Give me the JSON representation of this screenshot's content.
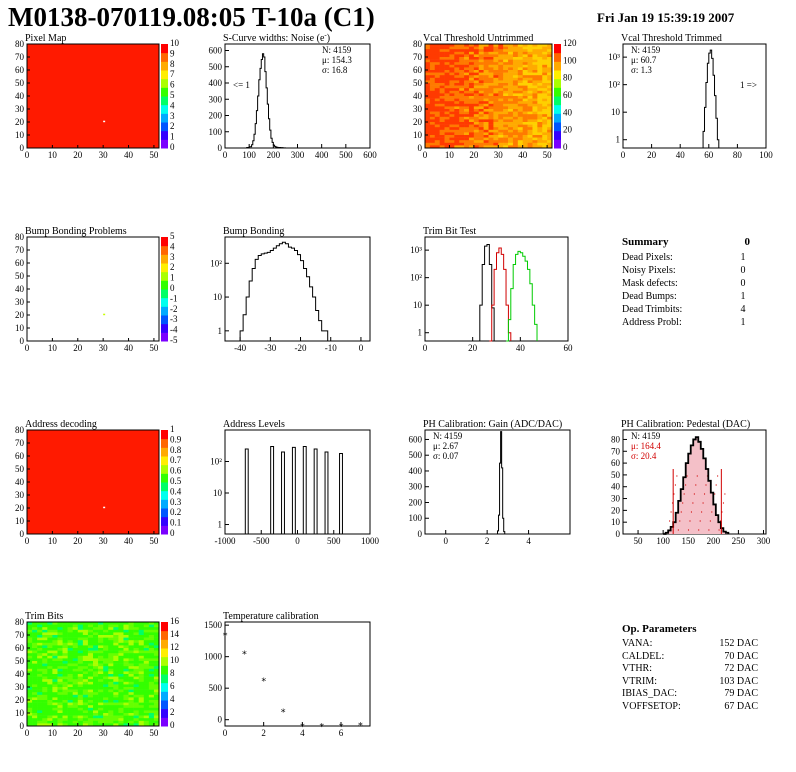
{
  "header": {
    "title": "M0138-070119.08:05 T-10a (C1)",
    "date": "Fri Jan 19 15:39:19 2007"
  },
  "colors": {
    "hist_line": "#000000",
    "red_series": "#d10000",
    "green_series": "#00cc00",
    "map_red": "#ff1a00"
  },
  "chart_data": [
    {
      "name": "pixel-map",
      "type": "heatmap",
      "title": "Pixel Map",
      "xticks": [
        "0",
        "10",
        "20",
        "30",
        "40",
        "50"
      ],
      "yticks": [
        "0",
        "10",
        "20",
        "30",
        "40",
        "50",
        "60",
        "70",
        "80"
      ],
      "xlim": [
        0,
        52
      ],
      "ylim": [
        0,
        80
      ],
      "fill": "uniform-red",
      "dead_pixel": [
        30,
        21
      ],
      "palette_ticks": [
        "0",
        "1",
        "2",
        "3",
        "4",
        "5",
        "6",
        "7",
        "8",
        "9",
        "10"
      ]
    },
    {
      "name": "scurve-noise",
      "type": "line",
      "title": "S-Curve widths: Noise (e",
      "title_sup": "-",
      "title_end": ")",
      "xticks": [
        "0",
        "100",
        "200",
        "300",
        "400",
        "500",
        "600"
      ],
      "yticks": [
        "0",
        "100",
        "200",
        "300",
        "400",
        "500",
        "600"
      ],
      "xlim": [
        0,
        600
      ],
      "ylim": [
        0,
        640
      ],
      "log": false,
      "stats": [
        "N: 4159",
        "μ: 154.3",
        "σ: 16.8"
      ],
      "annotation": "<= 1",
      "series": [
        {
          "x": [
            80,
            90,
            100,
            110,
            115,
            120,
            125,
            130,
            135,
            140,
            145,
            150,
            155,
            160,
            165,
            170,
            175,
            180,
            185,
            190,
            195,
            200,
            205,
            210,
            215,
            220,
            230,
            240,
            250
          ],
          "y": [
            0,
            3,
            8,
            20,
            45,
            85,
            150,
            230,
            320,
            420,
            490,
            545,
            580,
            560,
            470,
            370,
            270,
            180,
            110,
            60,
            35,
            18,
            10,
            6,
            4,
            3,
            2,
            1,
            0
          ]
        }
      ]
    },
    {
      "name": "vcal-untrimmed",
      "type": "heatmap",
      "title": "Vcal Threshold Untrimmed",
      "xticks": [
        "0",
        "10",
        "20",
        "30",
        "40",
        "50"
      ],
      "yticks": [
        "0",
        "10",
        "20",
        "30",
        "40",
        "50",
        "60",
        "70",
        "80"
      ],
      "xlim": [
        0,
        52
      ],
      "ylim": [
        0,
        80
      ],
      "fill": "gradient-orange",
      "palette_ticks": [
        "0",
        "20",
        "40",
        "60",
        "80",
        "100",
        "120"
      ]
    },
    {
      "name": "vcal-trimmed",
      "type": "line",
      "title": "Vcal Threshold Trimmed",
      "xticks": [
        "0",
        "20",
        "40",
        "60",
        "80",
        "100"
      ],
      "yticks": [
        "1",
        "10",
        "10²",
        "10³"
      ],
      "xlim": [
        0,
        100
      ],
      "ylim_log": [
        0.5,
        3000
      ],
      "log": true,
      "stats": [
        "N: 4159",
        "μ: 60.7",
        "σ: 1.3"
      ],
      "annotation": "1 =>",
      "series": [
        {
          "x": [
            55,
            56,
            57,
            58,
            59,
            60,
            61,
            62,
            63,
            64,
            65,
            66,
            67
          ],
          "y": [
            0,
            2,
            15,
            120,
            600,
            1400,
            1800,
            900,
            220,
            40,
            6,
            1,
            0
          ]
        }
      ]
    },
    {
      "name": "bump-bonding-problems",
      "type": "heatmap",
      "title": "Bump Bonding Problems",
      "xticks": [
        "0",
        "10",
        "20",
        "30",
        "40",
        "50"
      ],
      "yticks": [
        "0",
        "10",
        "20",
        "30",
        "40",
        "50",
        "60",
        "70",
        "80"
      ],
      "xlim": [
        0,
        52
      ],
      "ylim": [
        0,
        80
      ],
      "fill": "empty",
      "dead_pixel": [
        30,
        21
      ],
      "palette_ticks": [
        "-5",
        "-4",
        "-3",
        "-2",
        "-1",
        "0",
        "1",
        "2",
        "3",
        "4",
        "5"
      ]
    },
    {
      "name": "bump-bonding",
      "type": "line",
      "title": "Bump Bonding",
      "xticks": [
        "-40",
        "-30",
        "-20",
        "-10",
        "0"
      ],
      "yticks": [
        "1",
        "10",
        "10²"
      ],
      "xlim": [
        -45,
        3
      ],
      "ylim_log": [
        0.5,
        600
      ],
      "log": true,
      "series": [
        {
          "x": [
            -40,
            -39,
            -38,
            -37,
            -36,
            -35,
            -34,
            -33,
            -32,
            -31,
            -30,
            -29,
            -28,
            -27,
            -26,
            -25,
            -24,
            -23,
            -22,
            -21,
            -20,
            -19,
            -18,
            -17,
            -16,
            -15,
            -14,
            -13,
            -12,
            -11
          ],
          "y": [
            1,
            3,
            10,
            30,
            70,
            130,
            170,
            190,
            200,
            210,
            240,
            280,
            330,
            380,
            420,
            380,
            300,
            280,
            240,
            180,
            120,
            70,
            40,
            20,
            10,
            4,
            2,
            1,
            1,
            0
          ]
        }
      ]
    },
    {
      "name": "trim-bit-test",
      "type": "line",
      "title": "Trim Bit Test",
      "xticks": [
        "0",
        "20",
        "40",
        "60"
      ],
      "yticks": [
        "1",
        "10",
        "10²",
        "10³"
      ],
      "xlim": [
        0,
        60
      ],
      "ylim_log": [
        0.5,
        3000
      ],
      "log": true,
      "series": [
        {
          "color": "black",
          "x": [
            22,
            23,
            24,
            25,
            26,
            27,
            28,
            29
          ],
          "y": [
            0,
            10,
            300,
            1400,
            1600,
            300,
            8,
            0
          ]
        },
        {
          "color": "red",
          "x": [
            27,
            28,
            29,
            30,
            31,
            32,
            33,
            34,
            35,
            36
          ],
          "y": [
            0,
            10,
            200,
            800,
            1200,
            700,
            200,
            10,
            1,
            0
          ]
        },
        {
          "color": "green",
          "x": [
            34,
            35,
            36,
            37,
            38,
            39,
            40,
            41,
            42,
            43,
            44,
            45,
            46,
            47
          ],
          "y": [
            0,
            3,
            40,
            300,
            700,
            900,
            800,
            600,
            400,
            200,
            60,
            10,
            2,
            0
          ]
        }
      ]
    },
    {
      "name": "address-decoding",
      "type": "heatmap",
      "title": "Address decoding",
      "xticks": [
        "0",
        "10",
        "20",
        "30",
        "40",
        "50"
      ],
      "yticks": [
        "0",
        "10",
        "20",
        "30",
        "40",
        "50",
        "60",
        "70",
        "80"
      ],
      "xlim": [
        0,
        52
      ],
      "ylim": [
        0,
        80
      ],
      "fill": "uniform-red",
      "dead_pixel": [
        30,
        21
      ],
      "palette_ticks": [
        "0",
        "0.1",
        "0.2",
        "0.3",
        "0.4",
        "0.5",
        "0.6",
        "0.7",
        "0.8",
        "0.9",
        "1"
      ]
    },
    {
      "name": "address-levels",
      "type": "line",
      "title": "Address Levels",
      "xticks": [
        "-1000",
        "-500",
        "0",
        "500",
        "1000"
      ],
      "yticks": [
        "1",
        "10",
        "10²"
      ],
      "xlim": [
        -1000,
        1000
      ],
      "ylim_log": [
        0.5,
        1000
      ],
      "log": true,
      "peaks": [
        -700,
        -350,
        -200,
        -50,
        100,
        250,
        400,
        600
      ],
      "peak_heights": [
        250,
        300,
        200,
        280,
        300,
        250,
        200,
        180
      ]
    },
    {
      "name": "ph-gain",
      "type": "line",
      "title": "PH Calibration: Gain (ADC/DAC)",
      "xticks": [
        "0",
        "2",
        "4"
      ],
      "yticks": [
        "0",
        "100",
        "200",
        "300",
        "400",
        "500",
        "600"
      ],
      "xlim": [
        -1,
        6
      ],
      "ylim": [
        0,
        660
      ],
      "log": false,
      "stats": [
        "N: 4159",
        "μ: 2.67",
        "σ: 0.07"
      ],
      "series": [
        {
          "x": [
            2.45,
            2.5,
            2.55,
            2.6,
            2.65,
            2.7,
            2.75,
            2.8,
            2.85
          ],
          "y": [
            0,
            20,
            120,
            450,
            650,
            420,
            100,
            15,
            0
          ]
        }
      ]
    },
    {
      "name": "ph-pedestal",
      "type": "line",
      "title": "PH Calibration: Pedestal (DAC)",
      "xticks": [
        "50",
        "100",
        "150",
        "200",
        "250",
        "300"
      ],
      "yticks": [
        "0",
        "10",
        "20",
        "30",
        "40",
        "50",
        "60",
        "70",
        "80"
      ],
      "xlim": [
        20,
        305
      ],
      "ylim": [
        0,
        88
      ],
      "log": false,
      "stats": [
        "N: 4159",
        "μ: 164.4",
        "σ: 20.4"
      ],
      "cut_lines": [
        120,
        216
      ],
      "series": [
        {
          "x": [
            100,
            105,
            110,
            115,
            120,
            125,
            130,
            135,
            140,
            145,
            150,
            155,
            160,
            165,
            170,
            175,
            180,
            185,
            190,
            195,
            200,
            205,
            210,
            215,
            220,
            225,
            230
          ],
          "y": [
            0,
            1,
            3,
            6,
            10,
            18,
            28,
            38,
            48,
            60,
            68,
            75,
            80,
            82,
            78,
            72,
            64,
            55,
            45,
            35,
            25,
            16,
            10,
            5,
            2,
            1,
            0
          ]
        }
      ]
    },
    {
      "name": "trim-bits",
      "type": "heatmap",
      "title": "Trim Bits",
      "xticks": [
        "0",
        "10",
        "20",
        "30",
        "40",
        "50"
      ],
      "yticks": [
        "0",
        "10",
        "20",
        "30",
        "40",
        "50",
        "60",
        "70",
        "80"
      ],
      "xlim": [
        0,
        52
      ],
      "ylim": [
        0,
        80
      ],
      "fill": "noise-green",
      "palette_ticks": [
        "0",
        "2",
        "4",
        "6",
        "8",
        "10",
        "12",
        "14",
        "16"
      ]
    },
    {
      "name": "temperature-calibration",
      "type": "scatter",
      "title": "Temperature calibration",
      "xticks": [
        "0",
        "2",
        "4",
        "6"
      ],
      "yticks": [
        "0",
        "500",
        "1000",
        "1500"
      ],
      "xlim": [
        0,
        7.5
      ],
      "ylim": [
        -100,
        1550
      ],
      "series": [
        {
          "x": [
            0,
            1,
            2,
            3,
            4,
            5,
            6,
            7
          ],
          "y": [
            1390,
            1100,
            670,
            180,
            -50,
            -50,
            -50,
            -40
          ]
        }
      ]
    }
  ],
  "summary": {
    "title": "Summary",
    "total": "0",
    "rows": [
      {
        "label": "Dead Pixels:",
        "value": "1"
      },
      {
        "label": "Noisy Pixels:",
        "value": "0"
      },
      {
        "label": "Mask defects:",
        "value": "0"
      },
      {
        "label": "Dead Bumps:",
        "value": "1"
      },
      {
        "label": "Dead Trimbits:",
        "value": "4"
      },
      {
        "label": "Address Probl:",
        "value": "1"
      }
    ]
  },
  "params": {
    "title": "Op. Parameters",
    "rows": [
      {
        "label": "VANA:",
        "value": "152 DAC"
      },
      {
        "label": "CALDEL:",
        "value": "70 DAC"
      },
      {
        "label": "VTHR:",
        "value": "72 DAC"
      },
      {
        "label": "VTRIM:",
        "value": "103 DAC"
      },
      {
        "label": "IBIAS_DAC:",
        "value": "79 DAC"
      },
      {
        "label": "VOFFSETOP:",
        "value": "67 DAC"
      }
    ]
  }
}
